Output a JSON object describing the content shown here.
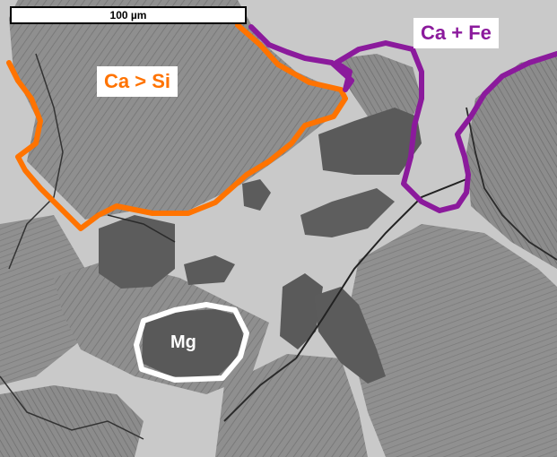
{
  "image": {
    "scale_bar_label": "100 µm",
    "regions": {
      "ca_si": {
        "label": "Ca > Si",
        "color": "#ff7300"
      },
      "ca_fe": {
        "label": "Ca + Fe",
        "color": "#8b1a9c"
      },
      "mg": {
        "label": "Mg",
        "color": "#ffffff"
      }
    }
  }
}
